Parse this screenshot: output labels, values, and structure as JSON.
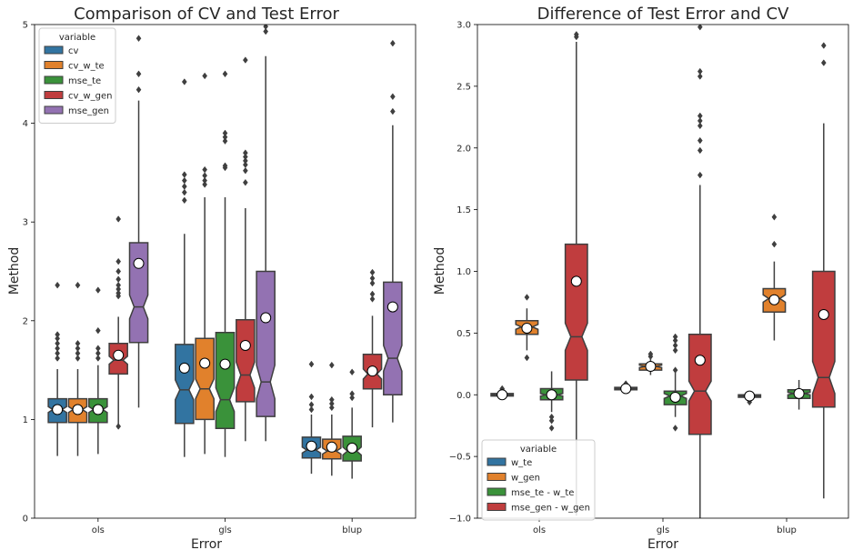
{
  "chart_data": [
    {
      "type": "box",
      "title": "Comparison of CV and Test Error",
      "xlabel": "Error",
      "ylabel": "Method",
      "categories": [
        "ols",
        "gls",
        "blup"
      ],
      "ylim": [
        0,
        5
      ],
      "yticks": [
        "0",
        "1",
        "2",
        "3",
        "4",
        "5"
      ],
      "notched": true,
      "mean_marker": "white circle",
      "legend": {
        "title": "variable",
        "placement": "top-left",
        "entries": [
          "cv",
          "cv_w_te",
          "mse_te",
          "cv_w_gen",
          "mse_gen"
        ]
      },
      "series": [
        {
          "name": "cv",
          "color": "#3274a1",
          "boxes": [
            {
              "whislo": 0.63,
              "q1": 0.97,
              "med": 1.1,
              "q3": 1.21,
              "whishi": 1.51,
              "mean": 1.1,
              "notch": [
                1.07,
                1.13
              ],
              "fliers": [
                1.62,
                1.67,
                1.72,
                1.77,
                1.82,
                1.86,
                2.36
              ]
            },
            {
              "whislo": 0.62,
              "q1": 0.96,
              "med": 1.3,
              "q3": 1.76,
              "whishi": 2.88,
              "mean": 1.52,
              "notch": [
                1.2,
                1.4
              ],
              "fliers": [
                3.22,
                3.3,
                3.36,
                3.42,
                3.48,
                4.42
              ]
            },
            {
              "whislo": 0.45,
              "q1": 0.61,
              "med": 0.69,
              "q3": 0.82,
              "whishi": 1.05,
              "mean": 0.73,
              "notch": [
                0.66,
                0.72
              ],
              "fliers": [
                1.1,
                1.15,
                1.23,
                1.56
              ]
            }
          ]
        },
        {
          "name": "cv_w_te",
          "color": "#e1812c",
          "boxes": [
            {
              "whislo": 0.63,
              "q1": 0.97,
              "med": 1.1,
              "q3": 1.21,
              "whishi": 1.51,
              "mean": 1.1,
              "notch": [
                1.07,
                1.13
              ],
              "fliers": [
                1.62,
                1.67,
                1.72,
                1.77,
                2.36
              ]
            },
            {
              "whislo": 0.65,
              "q1": 1.0,
              "med": 1.31,
              "q3": 1.82,
              "whishi": 3.25,
              "mean": 1.57,
              "notch": [
                1.21,
                1.41
              ],
              "fliers": [
                3.38,
                3.42,
                3.47,
                3.53,
                4.48
              ]
            },
            {
              "whislo": 0.43,
              "q1": 0.6,
              "med": 0.68,
              "q3": 0.8,
              "whishi": 1.05,
              "mean": 0.72,
              "notch": [
                0.65,
                0.71
              ],
              "fliers": [
                1.12,
                1.16,
                1.2,
                1.55
              ]
            }
          ]
        },
        {
          "name": "mse_te",
          "color": "#3a923a",
          "boxes": [
            {
              "whislo": 0.65,
              "q1": 0.97,
              "med": 1.1,
              "q3": 1.21,
              "whishi": 1.55,
              "mean": 1.1,
              "notch": [
                1.07,
                1.13
              ],
              "fliers": [
                1.62,
                1.67,
                1.72,
                1.9,
                2.31
              ]
            },
            {
              "whislo": 0.62,
              "q1": 0.91,
              "med": 1.2,
              "q3": 1.88,
              "whishi": 3.25,
              "mean": 1.56,
              "notch": [
                1.08,
                1.32
              ],
              "fliers": [
                3.55,
                3.57,
                3.82,
                3.86,
                3.9,
                4.5
              ]
            },
            {
              "whislo": 0.4,
              "q1": 0.58,
              "med": 0.68,
              "q3": 0.83,
              "whishi": 1.12,
              "mean": 0.71,
              "notch": [
                0.64,
                0.72
              ],
              "fliers": [
                1.22,
                1.26,
                1.48
              ]
            }
          ]
        },
        {
          "name": "cv_w_gen",
          "color": "#c03d3e",
          "boxes": [
            {
              "whislo": 0.93,
              "q1": 1.46,
              "med": 1.6,
              "q3": 1.77,
              "whishi": 2.04,
              "mean": 1.65,
              "notch": [
                1.56,
                1.64
              ],
              "fliers": [
                2.25,
                2.28,
                2.32,
                2.36,
                2.42,
                2.5,
                2.6,
                3.03,
                0.93
              ]
            },
            {
              "whislo": 0.78,
              "q1": 1.18,
              "med": 1.45,
              "q3": 2.01,
              "whishi": 3.14,
              "mean": 1.75,
              "notch": [
                1.32,
                1.58
              ],
              "fliers": [
                3.4,
                3.52,
                3.58,
                3.62,
                3.66,
                3.7,
                4.64
              ]
            },
            {
              "whislo": 0.92,
              "q1": 1.31,
              "med": 1.46,
              "q3": 1.66,
              "whishi": 2.05,
              "mean": 1.49,
              "notch": [
                1.41,
                1.51
              ],
              "fliers": [
                2.22,
                2.27,
                2.38,
                2.43,
                2.49
              ]
            }
          ]
        },
        {
          "name": "mse_gen",
          "color": "#9372b2",
          "boxes": [
            {
              "whislo": 1.12,
              "q1": 1.78,
              "med": 2.14,
              "q3": 2.79,
              "whishi": 4.23,
              "mean": 2.58,
              "notch": [
                2.02,
                2.26
              ],
              "fliers": [
                4.34,
                4.5,
                4.86
              ]
            },
            {
              "whislo": 0.78,
              "q1": 1.03,
              "med": 1.38,
              "q3": 2.5,
              "whishi": 4.68,
              "mean": 2.03,
              "notch": [
                1.21,
                1.55
              ],
              "fliers": [
                4.93,
                4.98
              ]
            },
            {
              "whislo": 0.97,
              "q1": 1.25,
              "med": 1.62,
              "q3": 2.39,
              "whishi": 3.98,
              "mean": 2.14,
              "notch": [
                1.49,
                1.75
              ],
              "fliers": [
                4.12,
                4.27,
                4.81
              ]
            }
          ]
        }
      ]
    },
    {
      "type": "box",
      "title": "Difference of Test Error and CV",
      "xlabel": "Error",
      "ylabel": "Method",
      "categories": [
        "ols",
        "gls",
        "blup"
      ],
      "ylim": [
        -1.0,
        3.0
      ],
      "yticks": [
        "−1.0",
        "−0.5",
        "0.0",
        "0.5",
        "1.0",
        "1.5",
        "2.0",
        "2.5",
        "3.0"
      ],
      "notched": true,
      "mean_marker": "white circle",
      "legend": {
        "title": "variable",
        "placement": "bottom-left",
        "entries": [
          "w_te",
          "w_gen",
          "mse_te - w_te",
          "mse_gen - w_gen"
        ]
      },
      "series": [
        {
          "name": "w_te",
          "color": "#3274a1",
          "boxes": [
            {
              "whislo": -0.02,
              "q1": -0.01,
              "med": 0.0,
              "q3": 0.01,
              "whishi": 0.02,
              "mean": 0.0,
              "notch": [
                -0.004,
                0.004
              ],
              "fliers": [
                0.04,
                0.05
              ]
            },
            {
              "whislo": 0.03,
              "q1": 0.04,
              "med": 0.05,
              "q3": 0.06,
              "whishi": 0.07,
              "mean": 0.05,
              "notch": [
                0.046,
                0.054
              ],
              "fliers": [
                0.09
              ]
            },
            {
              "whislo": -0.03,
              "q1": -0.02,
              "med": -0.01,
              "q3": 0.0,
              "whishi": 0.01,
              "mean": -0.01,
              "notch": [
                -0.014,
                -0.006
              ],
              "fliers": [
                -0.06
              ]
            }
          ]
        },
        {
          "name": "w_gen",
          "color": "#e1812c",
          "boxes": [
            {
              "whislo": 0.36,
              "q1": 0.49,
              "med": 0.55,
              "q3": 0.6,
              "whishi": 0.7,
              "mean": 0.54,
              "notch": [
                0.53,
                0.57
              ],
              "fliers": [
                0.3,
                0.79
              ]
            },
            {
              "whislo": 0.16,
              "q1": 0.2,
              "med": 0.23,
              "q3": 0.25,
              "whishi": 0.29,
              "mean": 0.23,
              "notch": [
                0.22,
                0.24
              ],
              "fliers": [
                0.31,
                0.33
              ]
            },
            {
              "whislo": 0.44,
              "q1": 0.67,
              "med": 0.78,
              "q3": 0.86,
              "whishi": 1.08,
              "mean": 0.77,
              "notch": [
                0.75,
                0.81
              ],
              "fliers": [
                1.22,
                1.44
              ]
            }
          ]
        },
        {
          "name": "mse_te - w_te",
          "color": "#3a923a",
          "boxes": [
            {
              "whislo": -0.14,
              "q1": -0.04,
              "med": 0.0,
              "q3": 0.05,
              "whishi": 0.19,
              "mean": 0.0,
              "notch": [
                -0.01,
                0.01
              ],
              "fliers": [
                -0.18,
                -0.21,
                -0.27
              ]
            },
            {
              "whislo": -0.18,
              "q1": -0.08,
              "med": -0.01,
              "q3": 0.03,
              "whishi": 0.18,
              "mean": -0.02,
              "notch": [
                -0.03,
                0.01
              ],
              "fliers": [
                0.2,
                0.36,
                0.4,
                0.44,
                0.47,
                -0.27
              ]
            },
            {
              "whislo": -0.12,
              "q1": -0.03,
              "med": 0.01,
              "q3": 0.04,
              "whishi": 0.12,
              "mean": 0.01,
              "notch": [
                0.0,
                0.02
              ],
              "fliers": []
            }
          ]
        },
        {
          "name": "mse_gen - w_gen",
          "color": "#c03d3e",
          "boxes": [
            {
              "whislo": -0.98,
              "q1": 0.12,
              "med": 0.47,
              "q3": 1.22,
              "whishi": 2.86,
              "mean": 0.92,
              "notch": [
                0.36,
                0.58
              ],
              "fliers": [
                2.9,
                2.92
              ]
            },
            {
              "whislo": -1.0,
              "q1": -0.32,
              "med": 0.03,
              "q3": 0.49,
              "whishi": 1.7,
              "mean": 0.28,
              "notch": [
                -0.05,
                0.11
              ],
              "fliers": [
                1.78,
                1.98,
                2.06,
                2.18,
                2.22,
                2.26,
                2.58,
                2.62,
                2.98
              ]
            },
            {
              "whislo": -0.84,
              "q1": -0.1,
              "med": 0.14,
              "q3": 1.0,
              "whishi": 2.2,
              "mean": 0.65,
              "notch": [
                0.01,
                0.27
              ],
              "fliers": [
                2.69,
                2.83
              ]
            }
          ]
        }
      ]
    }
  ]
}
